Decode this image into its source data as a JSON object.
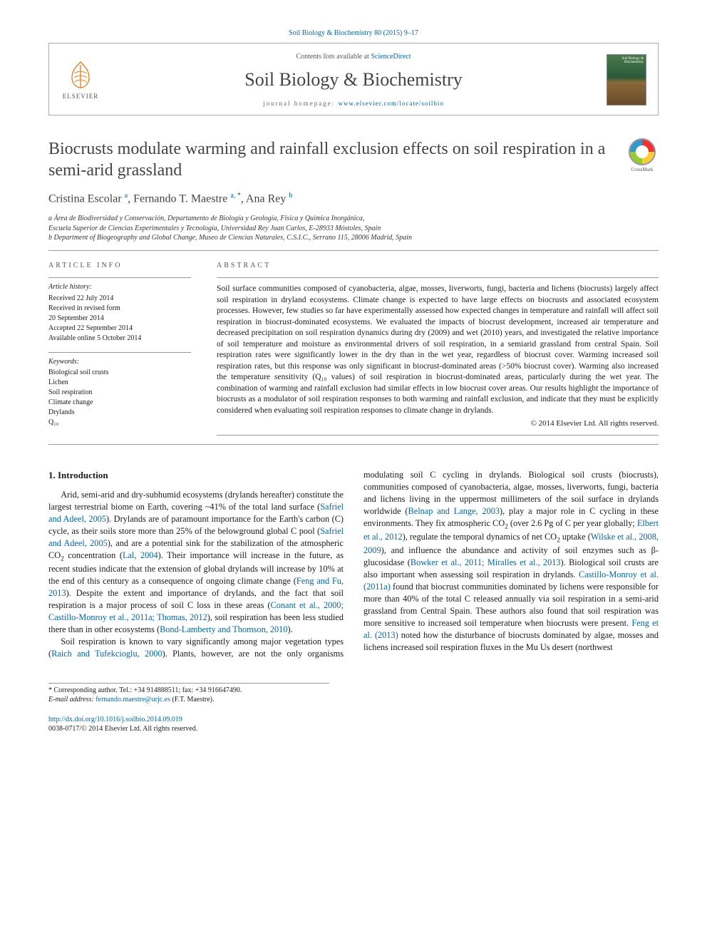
{
  "citation": "Soil Biology & Biochemistry 80 (2015) 9–17",
  "header": {
    "publisher_logo_text": "ELSEVIER",
    "contents_prefix": "Contents lists available at ",
    "contents_link": "ScienceDirect",
    "journal_name": "Soil Biology & Biochemistry",
    "homepage_label": "journal homepage: ",
    "homepage_url": "www.elsevier.com/locate/soilbio"
  },
  "title": "Biocrusts modulate warming and rainfall exclusion effects on soil respiration in a semi-arid grassland",
  "crossmark_label": "CrossMark",
  "authors_html": "Cristina Escolar <sup>a</sup>, Fernando T. Maestre <sup>a, *</sup>, Ana Rey <sup>b</sup>",
  "affiliations": [
    "a  Área de Biodiversidad y Conservación, Departamento de Biología y Geología, Física y Química Inorgánica,",
    "Escuela Superior de Ciencias Experimentales y Tecnología, Universidad Rey Juan Carlos, E-28933 Móstoles, Spain",
    "b  Department of Biogeography and Global Change, Museo de Ciencias Naturales, C.S.I.C., Serrano 115, 28006 Madrid, Spain"
  ],
  "article_info": {
    "header": "ARTICLE INFO",
    "history_label": "Article history:",
    "history": [
      "Received 22 July 2014",
      "Received in revised form",
      "20 September 2014",
      "Accepted 22 September 2014",
      "Available online 5 October 2014"
    ],
    "keywords_label": "Keywords:",
    "keywords": [
      "Biological soil crusts",
      "Lichen",
      "Soil respiration",
      "Climate change",
      "Drylands",
      "Q₁₀"
    ]
  },
  "abstract": {
    "header": "ABSTRACT",
    "text": "Soil surface communities composed of cyanobacteria, algae, mosses, liverworts, fungi, bacteria and lichens (biocrusts) largely affect soil respiration in dryland ecosystems. Climate change is expected to have large effects on biocrusts and associated ecosystem processes. However, few studies so far have experimentally assessed how expected changes in temperature and rainfall will affect soil respiration in biocrust-dominated ecosystems. We evaluated the impacts of biocrust development, increased air temperature and decreased precipitation on soil respiration dynamics during dry (2009) and wet (2010) years, and investigated the relative importance of soil temperature and moisture as environmental drivers of soil respiration, in a semiarid grassland from central Spain. Soil respiration rates were significantly lower in the dry than in the wet year, regardless of biocrust cover. Warming increased soil respiration rates, but this response was only significant in biocrust-dominated areas (>50% biocrust cover). Warming also increased the temperature sensitivity (Q₁₀ values) of soil respiration in biocrust-dominated areas, particularly during the wet year. The combination of warming and rainfall exclusion had similar effects in low biocrust cover areas. Our results highlight the importance of biocrusts as a modulator of soil respiration responses to both warming and rainfall exclusion, and indicate that they must be explicitly considered when evaluating soil respiration responses to climate change in drylands.",
    "copyright": "© 2014 Elsevier Ltd. All rights reserved."
  },
  "intro_heading": "1. Introduction",
  "footnotes": {
    "corr": "* Corresponding author. Tel.: +34 914888511; fax: +34 916647490.",
    "email_label": "E-mail address: ",
    "email": "fernando.maestre@urjc.es",
    "email_suffix": " (F.T. Maestre)."
  },
  "footer": {
    "doi": "http://dx.doi.org/10.1016/j.soilbio.2014.09.019",
    "issn_line": "0038-0717/© 2014 Elsevier Ltd. All rights reserved."
  },
  "colors": {
    "link": "#0066aa",
    "publisher_orange": "#e67817",
    "text": "#1a1a1a",
    "heading_gray": "#444444",
    "rule": "#999999"
  }
}
